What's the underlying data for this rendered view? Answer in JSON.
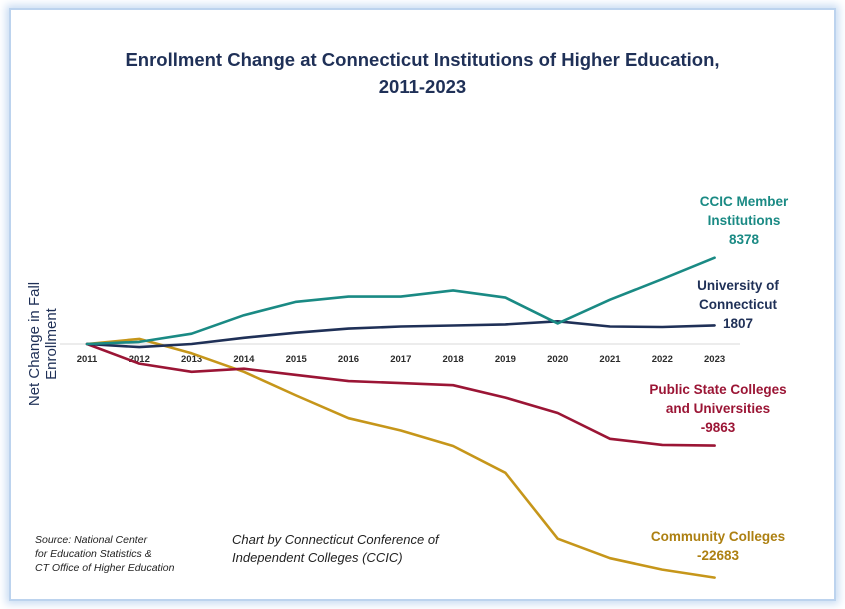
{
  "chart_data": {
    "type": "line",
    "title_line1": "Enrollment Change at Connecticut Institutions of Higher Education,",
    "title_line2": "2011-2023",
    "ylabel": "Net Change in Fall Enrollment",
    "xlabel": "",
    "categories": [
      "2011",
      "2012",
      "2013",
      "2014",
      "2015",
      "2016",
      "2017",
      "2018",
      "2019",
      "2020",
      "2021",
      "2022",
      "2023"
    ],
    "ylim": [
      -23500,
      10000
    ],
    "grid": false,
    "series": [
      {
        "id": "ccic",
        "name_line1": "CCIC Member",
        "name_line2": "Institutions",
        "end_label": "8378",
        "color": "#1a8a84",
        "values": [
          0,
          200,
          1000,
          2800,
          4100,
          4600,
          4600,
          5200,
          4500,
          2000,
          4300,
          6300,
          8378
        ]
      },
      {
        "id": "uconn",
        "name_line1": "University of",
        "name_line2": "Connecticut",
        "end_label": "1807",
        "color": "#1f3057",
        "values": [
          0,
          -300,
          0,
          600,
          1100,
          1500,
          1700,
          1800,
          1900,
          2200,
          1700,
          1650,
          1807
        ]
      },
      {
        "id": "pscu",
        "name_line1": "Public State Colleges",
        "name_line2": "and Universities",
        "end_label": "-9863",
        "color": "#9b1535",
        "values": [
          0,
          -1900,
          -2700,
          -2400,
          -3000,
          -3600,
          -3800,
          -4000,
          -5200,
          -6700,
          -9200,
          -9800,
          -9863
        ]
      },
      {
        "id": "cc",
        "name_line1": "Community Colleges",
        "name_line2": "",
        "end_label": "-22683",
        "color": "#c6961a",
        "values": [
          0,
          500,
          -900,
          -2700,
          -5000,
          -7200,
          -8400,
          -9900,
          -12500,
          -18900,
          -20800,
          -21900,
          -22683
        ]
      }
    ]
  },
  "footer": {
    "source_line1": "Source: National Center",
    "source_line2": "for Education Statistics &",
    "source_line3": "CT Office of Higher Education",
    "credit_line1": "Chart by Connecticut Conference of",
    "credit_line2": "Independent Colleges (CCIC)"
  }
}
